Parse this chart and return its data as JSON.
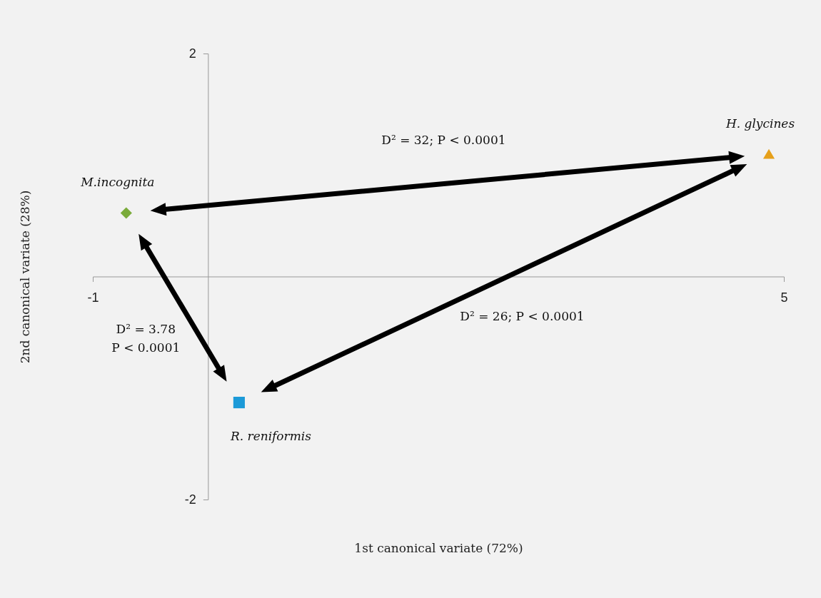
{
  "chart_data": {
    "type": "scatter",
    "xlabel": "1st canonical variate (72%)",
    "ylabel": "2nd canonical variate (28%)",
    "xlim": [
      -1,
      5
    ],
    "ylim": [
      -2,
      2
    ],
    "xticks": [
      -1,
      5
    ],
    "yticks": [
      -2,
      2
    ],
    "grid": false,
    "series": [
      {
        "name": "M.incognita",
        "color": "#7aab3a",
        "marker": "diamond",
        "x": [
          -0.71
        ],
        "values": [
          0.57
        ]
      },
      {
        "name": "R. reniformis",
        "color": "#1c9ad8",
        "marker": "square",
        "x": [
          0.27
        ],
        "values": [
          -1.13
        ]
      },
      {
        "name": "H. glycines",
        "color": "#e6a01a",
        "marker": "triangle",
        "x": [
          4.87
        ],
        "values": [
          1.1
        ]
      }
    ],
    "annotations": [
      "D² = 3.78\nP < 0.0001",
      "D² = 26; P < 0.0001",
      "D² = 32; P < 0.0001"
    ]
  }
}
